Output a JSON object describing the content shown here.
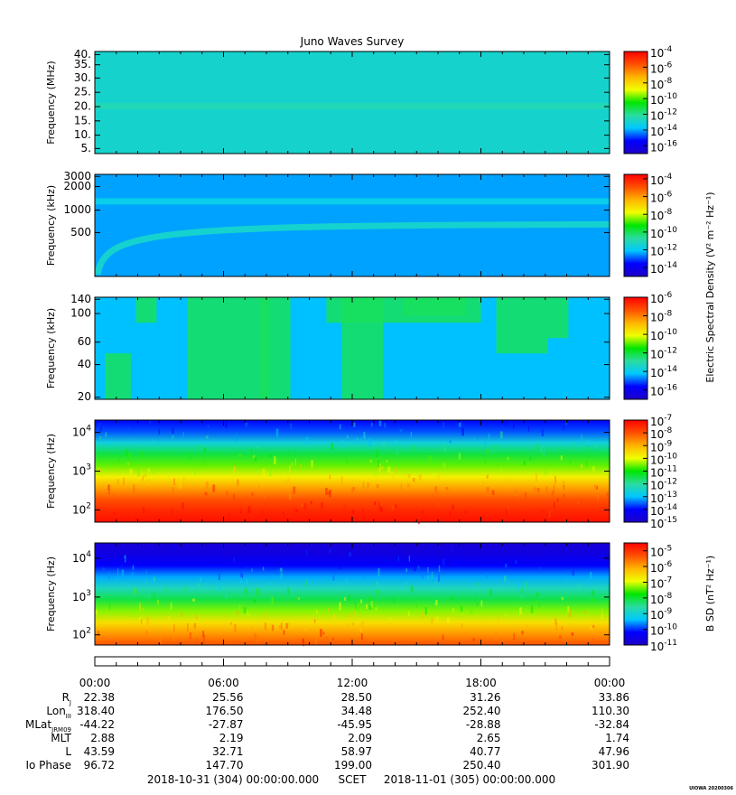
{
  "title": "Juno Waves Survey",
  "watermark": "UIOWA 20200306",
  "colors": {
    "background": "#ffffff",
    "axis": "#000000",
    "colormap": [
      "#1e00c8",
      "#0000ff",
      "#00c8ff",
      "#2adca0",
      "#00e600",
      "#f0ff00",
      "#ffb400",
      "#ff5000",
      "#ff0000"
    ]
  },
  "cbar_labels": {
    "esd": "Electric Spectral Density (V² m⁻² Hz⁻¹)",
    "bsd": "B SD (nT² Hz⁻¹)"
  },
  "chart_data": [
    {
      "type": "heatmap",
      "title": "Juno Waves Survey",
      "xlabel": "",
      "ylabel": "Frequency (MHz)",
      "y_ticks": [
        "40.",
        "35.",
        "30.",
        "25.",
        "20.",
        "15.",
        "10.",
        "5."
      ],
      "ylim": [
        3.5,
        40.5
      ],
      "color_scale": "log",
      "colorbar_ticks": [
        {
          "base": "10",
          "exp": "-4"
        },
        {
          "base": "10",
          "exp": "-6"
        },
        {
          "base": "10",
          "exp": "-8"
        },
        {
          "base": "10",
          "exp": "-10"
        },
        {
          "base": "10",
          "exp": "-12"
        },
        {
          "base": "10",
          "exp": "-14"
        },
        {
          "base": "10",
          "exp": "-16"
        }
      ],
      "colorbar_range": [
        -17,
        -4
      ],
      "features": [
        {
          "kind": "band",
          "at": 21,
          "log10": -12.5
        }
      ],
      "background_log10": -12.9
    },
    {
      "type": "heatmap",
      "xlabel": "",
      "ylabel": "Frequency (kHz)",
      "y_ticks": [
        "3000",
        "2000",
        "1000",
        "500"
      ],
      "color_scale": "log",
      "colorbar_ticks": [
        {
          "base": "10",
          "exp": "-4"
        },
        {
          "base": "10",
          "exp": "-6"
        },
        {
          "base": "10",
          "exp": "-8"
        },
        {
          "base": "10",
          "exp": "-10"
        },
        {
          "base": "10",
          "exp": "-12"
        },
        {
          "base": "10",
          "exp": "-14"
        }
      ],
      "colorbar_range": [
        -15,
        -3.5
      ],
      "features": [
        {
          "kind": "band",
          "at": 1400,
          "log10": -11.8
        },
        {
          "kind": "rising-band",
          "from": 130,
          "to": 650,
          "log10": -11.4
        }
      ],
      "background_log10": -12.4
    },
    {
      "type": "heatmap",
      "xlabel": "",
      "ylabel": "Frequency (kHz)",
      "y_ticks": [
        "140",
        "100",
        "60",
        "40",
        "20"
      ],
      "color_scale": "log",
      "colorbar_ticks": [
        {
          "base": "10",
          "exp": "-6"
        },
        {
          "base": "10",
          "exp": "-8"
        },
        {
          "base": "10",
          "exp": "-10"
        },
        {
          "base": "10",
          "exp": "-12"
        },
        {
          "base": "10",
          "exp": "-14"
        },
        {
          "base": "10",
          "exp": "-16"
        }
      ],
      "colorbar_range": [
        -17,
        -6
      ],
      "background_log10": -14.3,
      "bursts_log10": -12.3
    },
    {
      "type": "heatmap",
      "xlabel": "",
      "ylabel": "Frequency (Hz)",
      "y_ticks": [
        {
          "base": "10",
          "exp": "4"
        },
        {
          "base": "10",
          "exp": "3"
        },
        {
          "base": "10",
          "exp": "2"
        }
      ],
      "color_scale": "log",
      "colorbar_ticks": [
        {
          "base": "10",
          "exp": "-7"
        },
        {
          "base": "10",
          "exp": "-8"
        },
        {
          "base": "10",
          "exp": "-9"
        },
        {
          "base": "10",
          "exp": "-10"
        },
        {
          "base": "10",
          "exp": "-11"
        },
        {
          "base": "10",
          "exp": "-12"
        },
        {
          "base": "10",
          "exp": "-13"
        },
        {
          "base": "10",
          "exp": "-14"
        },
        {
          "base": "10",
          "exp": "-15"
        }
      ],
      "colorbar_range": [
        -15,
        -7
      ],
      "gradient_log10": [
        -7.2,
        -7.5,
        -8.0,
        -8.8,
        -9.8,
        -10.6,
        -11.4,
        -12.6,
        -13.6,
        -14.0
      ]
    },
    {
      "type": "heatmap",
      "xlabel": "",
      "ylabel": "Frequency (Hz)",
      "y_ticks": [
        {
          "base": "10",
          "exp": "4"
        },
        {
          "base": "10",
          "exp": "3"
        },
        {
          "base": "10",
          "exp": "2"
        }
      ],
      "color_scale": "log",
      "colorbar_ticks": [
        {
          "base": "10",
          "exp": "-5"
        },
        {
          "base": "10",
          "exp": "-6"
        },
        {
          "base": "10",
          "exp": "-7"
        },
        {
          "base": "10",
          "exp": "-8"
        },
        {
          "base": "10",
          "exp": "-9"
        },
        {
          "base": "10",
          "exp": "-10"
        },
        {
          "base": "10",
          "exp": "-11"
        }
      ],
      "colorbar_range": [
        -11,
        -4.5
      ],
      "gradient_log10": [
        -5.3,
        -5.9,
        -6.6,
        -7.3,
        -8.1,
        -8.8,
        -9.5,
        -10.2,
        -10.6,
        -10.8
      ]
    }
  ],
  "time_axis": {
    "labels": [
      "00:00",
      "06:00",
      "12:00",
      "18:00",
      "00:00"
    ]
  },
  "ephemeris": [
    {
      "label": "R",
      "sub": "J",
      "values": [
        "22.38",
        "25.56",
        "28.50",
        "31.26",
        "33.86"
      ]
    },
    {
      "label": "Lon",
      "sub": "III",
      "values": [
        "318.40",
        "176.50",
        "34.48",
        "252.40",
        "110.30"
      ]
    },
    {
      "label": "MLat",
      "sub": "JRM09",
      "values": [
        "-44.22",
        "-27.87",
        "-45.95",
        "-28.88",
        "-32.84"
      ]
    },
    {
      "label": "MLT",
      "sub": "",
      "values": [
        "2.88",
        "2.19",
        "2.09",
        "2.65",
        "1.74"
      ]
    },
    {
      "label": "L",
      "sub": "",
      "values": [
        "43.59",
        "32.71",
        "58.97",
        "40.77",
        "47.96"
      ]
    },
    {
      "label": "Io Phase",
      "sub": "",
      "values": [
        "96.72",
        "147.70",
        "199.00",
        "250.40",
        "301.90"
      ]
    }
  ],
  "footer": {
    "start": "2018-10-31 (304) 00:00:00.000",
    "scet": "SCET",
    "end": "2018-11-01 (305) 00:00:00.000"
  }
}
